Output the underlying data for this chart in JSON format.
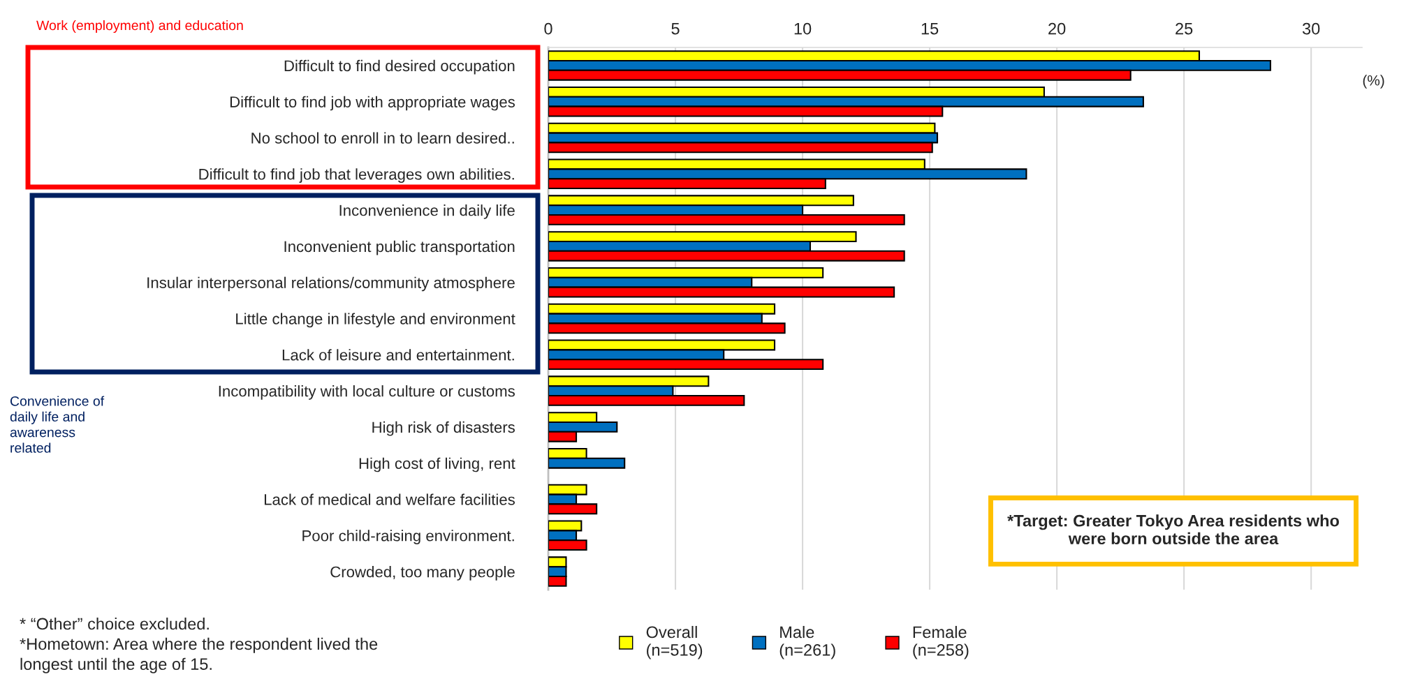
{
  "chart_data": {
    "type": "bar",
    "orientation": "horizontal",
    "categories": [
      "Difficult to find desired occupation",
      "Difficult to find job with appropriate wages",
      "No school to enroll in to learn desired..",
      "Difficult to find job that leverages own abilities.",
      "Inconvenience in daily life",
      "Inconvenient public transportation",
      "Insular interpersonal relations/community atmosphere",
      "Little change in lifestyle and environment",
      "Lack of leisure and entertainment.",
      "Incompatibility with local culture or customs",
      "High risk of disasters",
      "High cost of living, rent",
      "Lack of medical and welfare facilities",
      "Poor child-raising environment.",
      "Crowded, too many people"
    ],
    "series": [
      {
        "name": "Overall\n(n=519)",
        "color": "#ffff00",
        "values": [
          25.6,
          19.5,
          15.2,
          14.8,
          12.0,
          12.1,
          10.8,
          8.9,
          8.9,
          6.3,
          1.9,
          1.5,
          1.5,
          1.3,
          0.7
        ]
      },
      {
        "name": "Male\n(n=261)",
        "color": "#0070c0",
        "values": [
          28.4,
          23.4,
          15.3,
          18.8,
          10.0,
          10.3,
          8.0,
          8.4,
          6.9,
          4.9,
          2.7,
          3.0,
          1.1,
          1.1,
          0.7
        ]
      },
      {
        "name": "Female\n(n=258)",
        "color": "#ff0000",
        "values": [
          22.9,
          15.5,
          15.1,
          10.9,
          14.0,
          14.0,
          13.6,
          9.3,
          10.8,
          7.7,
          1.1,
          null,
          1.9,
          1.5,
          0.7
        ]
      }
    ],
    "xlim": [
      0,
      32
    ],
    "xticks": [
      0,
      5,
      10,
      15,
      20,
      25,
      30
    ],
    "xlabel": "(%)",
    "grid": "x",
    "legend": "bottom",
    "annotations": [
      "Work (employment) and education",
      "Convenience of\ndaily life and\nawareness\nrelated",
      "*Target: Greater Tokyo Area residents who\nwere born outside the area",
      "* “Other” choice excluded.\n*Hometown: Area where the respondent lived the\nlongest until the age of 15."
    ]
  }
}
